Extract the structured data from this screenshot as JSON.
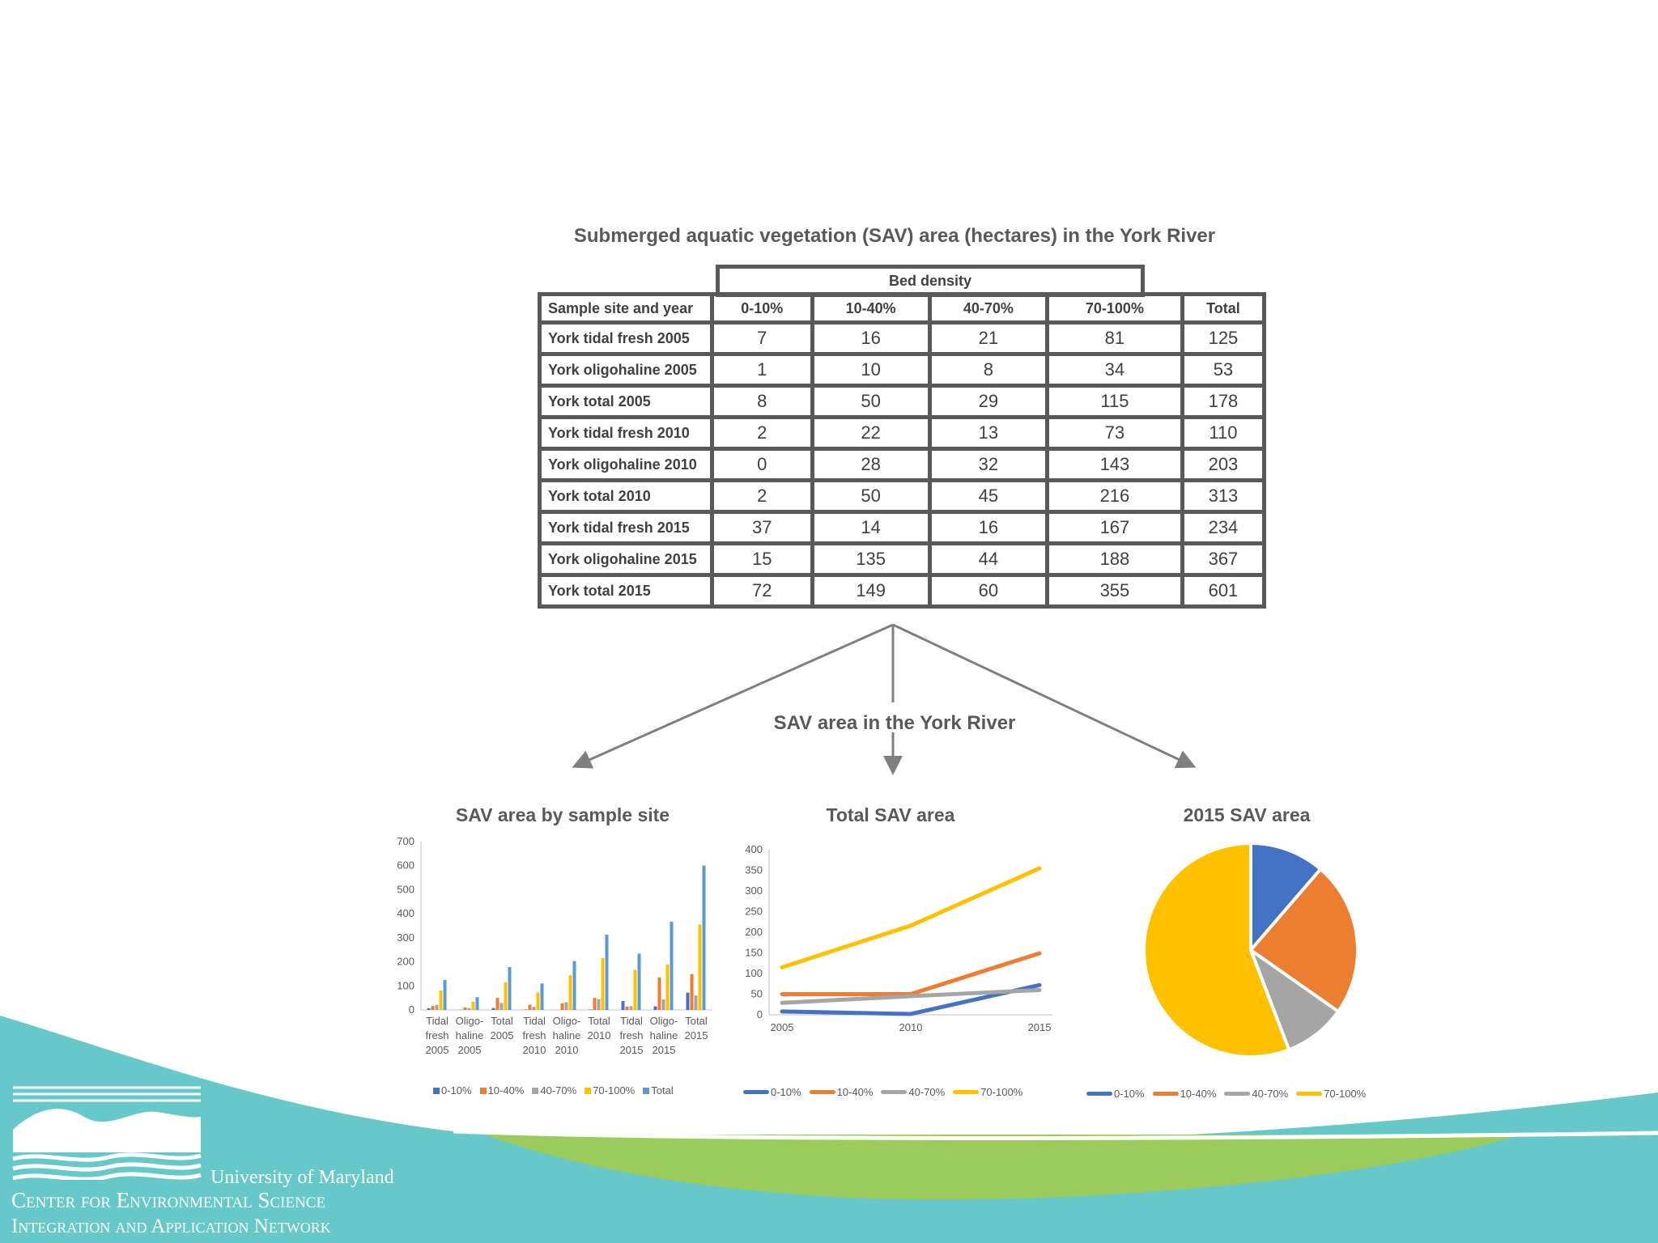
{
  "colors": {
    "c0_10": "#4472C4",
    "c10_40": "#ED7D31",
    "c40_70": "#A5A5A5",
    "c70_100": "#FFC000",
    "total": "#5B9BD5",
    "teal": "#66C8C9",
    "green": "#9BCB5A"
  },
  "table": {
    "title": "Submerged aquatic vegetation (SAV) area (hectares) in the York River",
    "group_header": "Bed density",
    "headers": [
      "Sample site and year",
      "0-10%",
      "10-40%",
      "40-70%",
      "70-100%",
      "Total"
    ],
    "rows": [
      [
        "York tidal fresh 2005",
        "7",
        "16",
        "21",
        "81",
        "125"
      ],
      [
        "York oligohaline 2005",
        "1",
        "10",
        "8",
        "34",
        "53"
      ],
      [
        "York total 2005",
        "8",
        "50",
        "29",
        "115",
        "178"
      ],
      [
        "York tidal fresh 2010",
        "2",
        "22",
        "13",
        "73",
        "110"
      ],
      [
        "York oligohaline 2010",
        "0",
        "28",
        "32",
        "143",
        "203"
      ],
      [
        "York total 2010",
        "2",
        "50",
        "45",
        "216",
        "313"
      ],
      [
        "York tidal fresh 2015",
        "37",
        "14",
        "16",
        "167",
        "234"
      ],
      [
        "York oligohaline 2015",
        "15",
        "135",
        "44",
        "188",
        "367"
      ],
      [
        "York total 2015",
        "72",
        "149",
        "60",
        "355",
        "601"
      ]
    ]
  },
  "arrows_title": "SAV area in the York River",
  "chart_data": [
    {
      "type": "bar",
      "title": "SAV area by sample site",
      "categories": [
        [
          "Tidal",
          "fresh",
          "2005"
        ],
        [
          "Oligo-",
          "haline",
          "2005"
        ],
        [
          "Total",
          "2005"
        ],
        [
          "Tidal",
          "fresh",
          "2010"
        ],
        [
          "Oligo-",
          "haline",
          "2010"
        ],
        [
          "Total",
          "2010"
        ],
        [
          "Tidal",
          "fresh",
          "2015"
        ],
        [
          "Oligo-",
          "haline",
          "2015"
        ],
        [
          "Total",
          "2015"
        ]
      ],
      "ylim": [
        0,
        700
      ],
      "yticks": [
        "0",
        "100",
        "200",
        "300",
        "400",
        "500",
        "600",
        "700"
      ],
      "series": [
        {
          "name": "0-10%",
          "values": [
            7,
            1,
            8,
            2,
            0,
            2,
            37,
            15,
            72
          ]
        },
        {
          "name": "10-40%",
          "values": [
            16,
            10,
            50,
            22,
            28,
            50,
            14,
            135,
            149
          ]
        },
        {
          "name": "40-70%",
          "values": [
            21,
            8,
            29,
            13,
            32,
            45,
            16,
            44,
            60
          ]
        },
        {
          "name": "70-100%",
          "values": [
            81,
            34,
            115,
            73,
            143,
            216,
            167,
            188,
            355
          ]
        },
        {
          "name": "Total",
          "values": [
            125,
            53,
            178,
            110,
            203,
            313,
            234,
            367,
            601
          ]
        }
      ],
      "legend": [
        "0-10%",
        "10-40%",
        "40-70%",
        "70-100%",
        "Total"
      ]
    },
    {
      "type": "line",
      "title": "Total SAV area",
      "x": [
        "2005",
        "2010",
        "2015"
      ],
      "ylim": [
        0,
        400
      ],
      "yticks": [
        "0",
        "50",
        "100",
        "150",
        "200",
        "250",
        "300",
        "350",
        "400"
      ],
      "series": [
        {
          "name": "0-10%",
          "values": [
            8,
            2,
            72
          ]
        },
        {
          "name": "10-40%",
          "values": [
            50,
            50,
            149
          ]
        },
        {
          "name": "40-70%",
          "values": [
            29,
            45,
            60
          ]
        },
        {
          "name": "70-100%",
          "values": [
            115,
            216,
            355
          ]
        }
      ],
      "legend": [
        "0-10%",
        "10-40%",
        "40-70%",
        "70-100%"
      ]
    },
    {
      "type": "pie",
      "title": "2015 SAV area",
      "labels": [
        "0-10%",
        "10-40%",
        "40-70%",
        "70-100%"
      ],
      "values": [
        72,
        149,
        60,
        355
      ],
      "legend": [
        "0-10%",
        "10-40%",
        "40-70%",
        "70-100%"
      ]
    }
  ],
  "logo": {
    "line1": "University of Maryland",
    "line2": "Center for Environmental Science",
    "line3": "Integration and Application Network"
  }
}
